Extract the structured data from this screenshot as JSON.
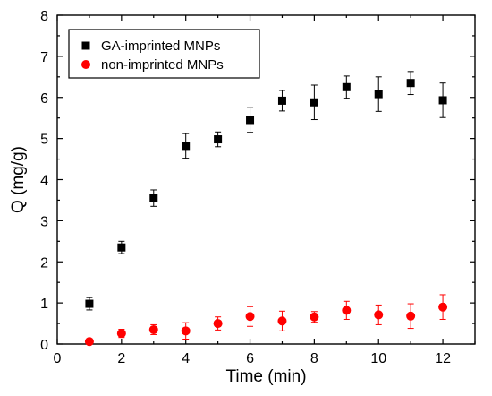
{
  "chart_data": {
    "type": "scatter",
    "title": "",
    "xlabel": "Time (min)",
    "ylabel": "Q (mg/g)",
    "xlim": [
      0,
      13
    ],
    "ylim": [
      0,
      8
    ],
    "x_ticks": [
      0,
      2,
      4,
      6,
      8,
      10,
      12
    ],
    "y_ticks": [
      0,
      1,
      2,
      3,
      4,
      5,
      6,
      7,
      8
    ],
    "grid": false,
    "legend_position": "top-left",
    "series": [
      {
        "name": "GA-imprinted MNPs",
        "marker": "square",
        "color": "#000000",
        "x": [
          1,
          2,
          3,
          4,
          5,
          6,
          7,
          8,
          9,
          10,
          11,
          12
        ],
        "y": [
          0.98,
          2.35,
          3.55,
          4.82,
          4.98,
          5.45,
          5.92,
          5.88,
          6.25,
          6.08,
          6.35,
          5.93
        ],
        "error": [
          0.15,
          0.15,
          0.2,
          0.3,
          0.18,
          0.3,
          0.25,
          0.42,
          0.27,
          0.42,
          0.28,
          0.42
        ]
      },
      {
        "name": "non-imprinted MNPs",
        "marker": "circle",
        "color": "#ff0000",
        "x": [
          1,
          2,
          3,
          4,
          5,
          6,
          7,
          8,
          9,
          10,
          11,
          12
        ],
        "y": [
          0.06,
          0.26,
          0.35,
          0.32,
          0.5,
          0.67,
          0.56,
          0.66,
          0.82,
          0.71,
          0.68,
          0.9
        ],
        "error": [
          0.02,
          0.1,
          0.12,
          0.2,
          0.16,
          0.24,
          0.24,
          0.13,
          0.22,
          0.24,
          0.3,
          0.3
        ]
      }
    ]
  }
}
